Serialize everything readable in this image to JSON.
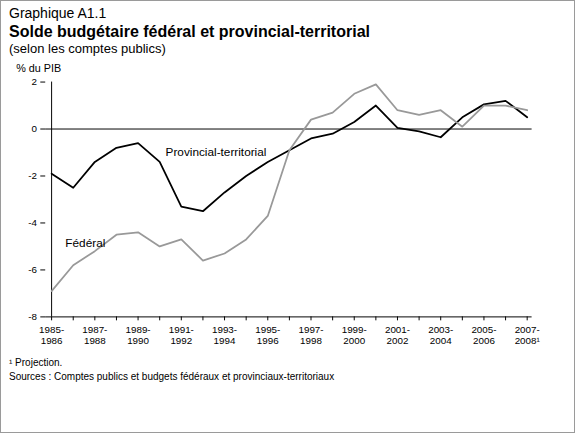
{
  "chart_data": {
    "type": "line",
    "figure_label": "Graphique A1.1",
    "title": "Solde budgétaire fédéral et provincial-territorial",
    "subtitle": "(selon les comptes publics)",
    "y_label": "% du PIB",
    "categories": [
      "1985-\n1986",
      null,
      "1987-\n1988",
      null,
      "1989-\n1990",
      null,
      "1991-\n1992",
      null,
      "1993-\n1994",
      null,
      "1995-\n1996",
      null,
      "1997-\n1998",
      null,
      "1999-\n2000",
      null,
      "2001-\n2002",
      null,
      "2003-\n2004",
      null,
      "2005-\n2006",
      null,
      "2007-\n2008¹"
    ],
    "series": [
      {
        "name": "Provincial-territorial",
        "color": "#000000",
        "values": [
          -1.9,
          -2.5,
          -1.4,
          -0.8,
          -0.6,
          -1.4,
          -3.3,
          -3.5,
          -2.7,
          -2.0,
          -1.4,
          -0.9,
          -0.4,
          -0.2,
          0.3,
          1.0,
          0.05,
          -0.1,
          -0.35,
          0.5,
          1.05,
          1.2,
          0.5
        ]
      },
      {
        "name": "Fédéral",
        "color": "#999999",
        "values": [
          -6.9,
          -5.8,
          -5.2,
          -4.5,
          -4.4,
          -5.0,
          -4.7,
          -5.6,
          -5.3,
          -4.7,
          -3.7,
          -0.9,
          0.4,
          0.7,
          1.5,
          1.9,
          0.8,
          0.6,
          0.8,
          0.1,
          1.0,
          1.0,
          0.8
        ]
      }
    ],
    "ylim": [
      -8,
      2
    ],
    "yticks": [
      -8,
      -6,
      -4,
      -2,
      0,
      2
    ],
    "grid": false,
    "notes": [
      "¹ Projection.",
      "Sources : Comptes publics et budgets fédéraux et provinciaux-territoriaux"
    ]
  }
}
